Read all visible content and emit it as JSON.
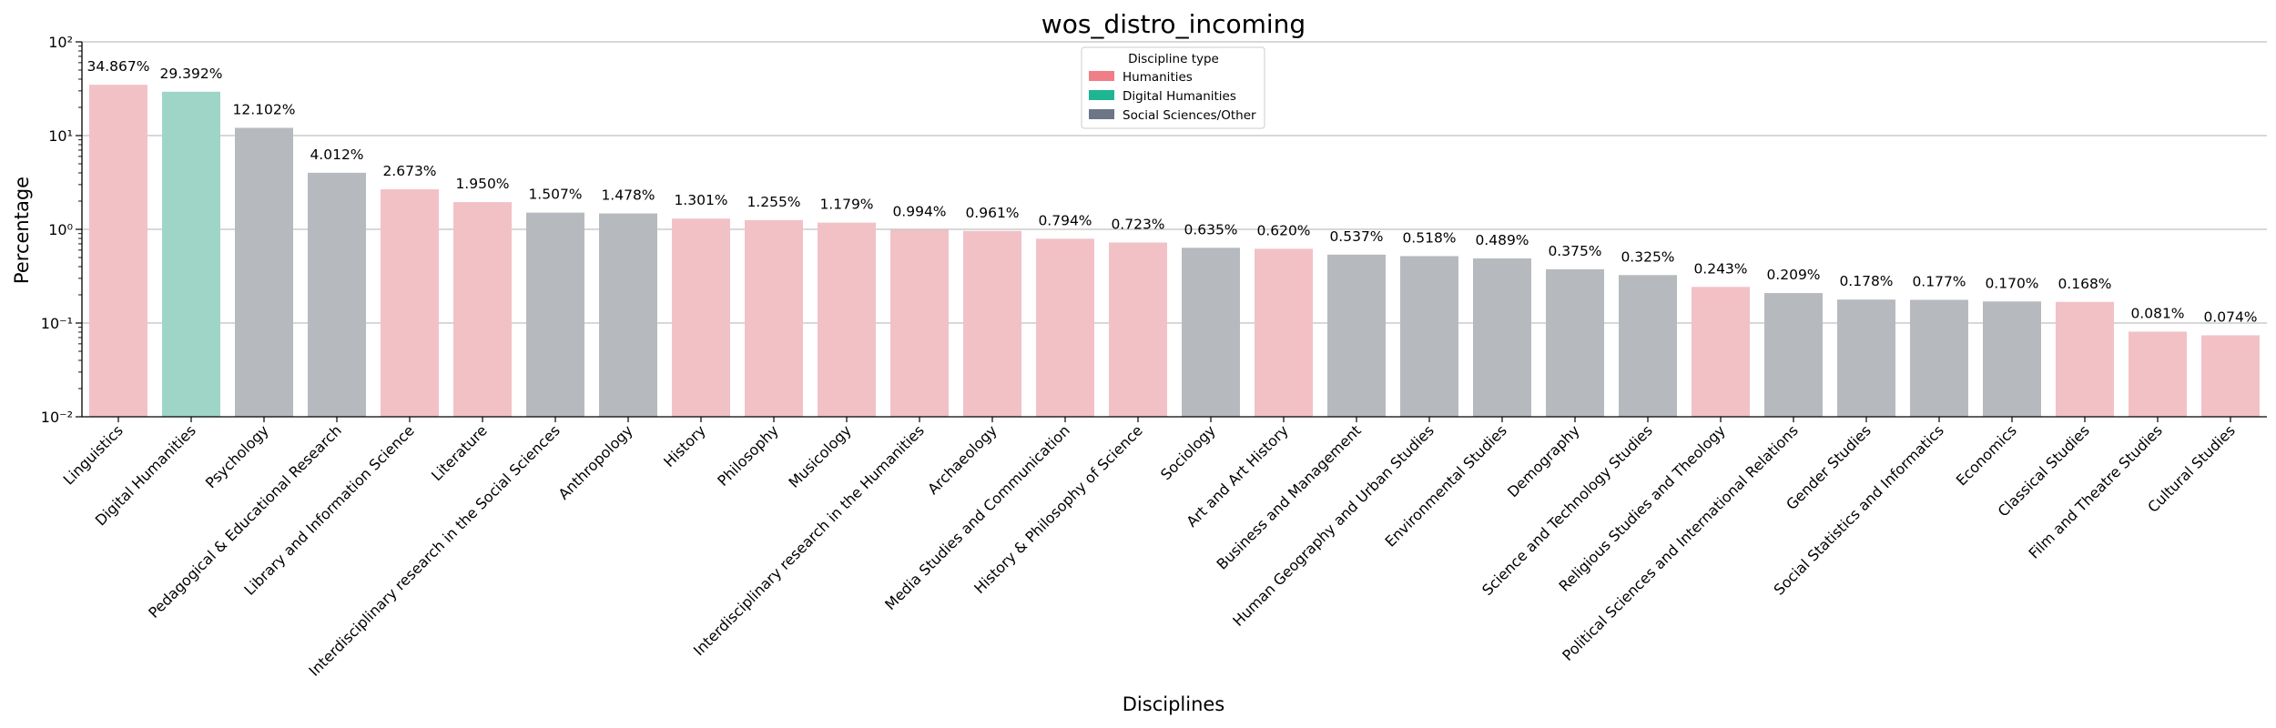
{
  "chart_data": {
    "type": "bar",
    "title": "wos_distro_incoming",
    "xlabel": "Disciplines",
    "ylabel": "Percentage",
    "yscale": "log",
    "ylim": [
      0.01,
      100
    ],
    "y_tick_labels": [
      "10⁻²",
      "10⁻¹",
      "10⁰",
      "10¹",
      "10²"
    ],
    "grid": "horizontal",
    "legend": {
      "title": "Discipline type",
      "placement": "top-center",
      "entries": [
        {
          "label": "Humanities",
          "color": "#f07e88"
        },
        {
          "label": "Digital Humanities",
          "color": "#20b592"
        },
        {
          "label": "Social Sciences/Other",
          "color": "#6b7686"
        }
      ]
    },
    "bar_colors": {
      "Humanities": "#f2c1c6",
      "Digital Humanities": "#9fd5c6",
      "Social Sciences/Other": "#b6babe"
    },
    "bars": [
      {
        "category": "Linguistics",
        "value": 34.867,
        "label": "34.867%",
        "type": "Humanities"
      },
      {
        "category": "Digital Humanities",
        "value": 29.392,
        "label": "29.392%",
        "type": "Digital Humanities"
      },
      {
        "category": "Psychology",
        "value": 12.102,
        "label": "12.102%",
        "type": "Social Sciences/Other"
      },
      {
        "category": "Pedagogical & Educational Research",
        "value": 4.012,
        "label": "4.012%",
        "type": "Social Sciences/Other"
      },
      {
        "category": "Library and Information Science",
        "value": 2.673,
        "label": "2.673%",
        "type": "Humanities"
      },
      {
        "category": "Literature",
        "value": 1.95,
        "label": "1.950%",
        "type": "Humanities"
      },
      {
        "category": "Interdisciplinary research in the Social Sciences",
        "value": 1.507,
        "label": "1.507%",
        "type": "Social Sciences/Other"
      },
      {
        "category": "Anthropology",
        "value": 1.478,
        "label": "1.478%",
        "type": "Social Sciences/Other"
      },
      {
        "category": "History",
        "value": 1.301,
        "label": "1.301%",
        "type": "Humanities"
      },
      {
        "category": "Philosophy",
        "value": 1.255,
        "label": "1.255%",
        "type": "Humanities"
      },
      {
        "category": "Musicology",
        "value": 1.179,
        "label": "1.179%",
        "type": "Humanities"
      },
      {
        "category": "Interdisciplinary research in the Humanities",
        "value": 0.994,
        "label": "0.994%",
        "type": "Humanities"
      },
      {
        "category": "Archaeology",
        "value": 0.961,
        "label": "0.961%",
        "type": "Humanities"
      },
      {
        "category": "Media Studies and Communication",
        "value": 0.794,
        "label": "0.794%",
        "type": "Humanities"
      },
      {
        "category": "History & Philosophy of Science",
        "value": 0.723,
        "label": "0.723%",
        "type": "Humanities"
      },
      {
        "category": "Sociology",
        "value": 0.635,
        "label": "0.635%",
        "type": "Social Sciences/Other"
      },
      {
        "category": "Art and Art History",
        "value": 0.62,
        "label": "0.620%",
        "type": "Humanities"
      },
      {
        "category": "Business and Management",
        "value": 0.537,
        "label": "0.537%",
        "type": "Social Sciences/Other"
      },
      {
        "category": "Human Geography and Urban Studies",
        "value": 0.518,
        "label": "0.518%",
        "type": "Social Sciences/Other"
      },
      {
        "category": "Environmental Studies",
        "value": 0.489,
        "label": "0.489%",
        "type": "Social Sciences/Other"
      },
      {
        "category": "Demography",
        "value": 0.375,
        "label": "0.375%",
        "type": "Social Sciences/Other"
      },
      {
        "category": "Science and Technology Studies",
        "value": 0.325,
        "label": "0.325%",
        "type": "Social Sciences/Other"
      },
      {
        "category": "Religious Studies and Theology",
        "value": 0.243,
        "label": "0.243%",
        "type": "Humanities"
      },
      {
        "category": "Political Sciences and International Relations",
        "value": 0.209,
        "label": "0.209%",
        "type": "Social Sciences/Other"
      },
      {
        "category": "Gender Studies",
        "value": 0.178,
        "label": "0.178%",
        "type": "Social Sciences/Other"
      },
      {
        "category": "Social Statistics and Informatics",
        "value": 0.177,
        "label": "0.177%",
        "type": "Social Sciences/Other"
      },
      {
        "category": "Economics",
        "value": 0.17,
        "label": "0.170%",
        "type": "Social Sciences/Other"
      },
      {
        "category": "Classical Studies",
        "value": 0.168,
        "label": "0.168%",
        "type": "Humanities"
      },
      {
        "category": "Film and Theatre Studies",
        "value": 0.081,
        "label": "0.081%",
        "type": "Humanities"
      },
      {
        "category": "Cultural Studies",
        "value": 0.074,
        "label": "0.074%",
        "type": "Humanities"
      }
    ]
  }
}
